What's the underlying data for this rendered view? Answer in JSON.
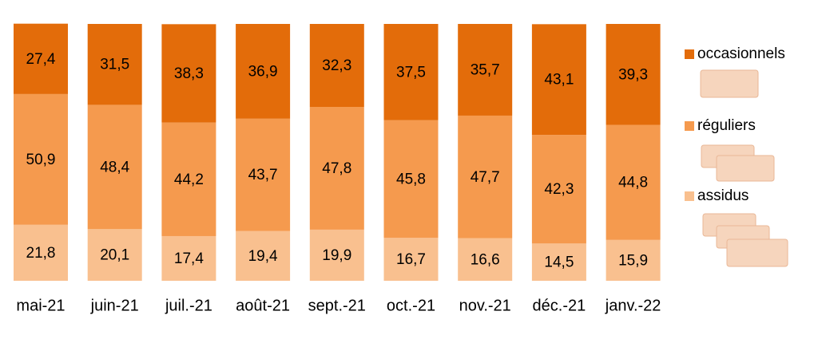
{
  "chart_data": {
    "type": "stacked_bar",
    "categories": [
      "mai-21",
      "juin-21",
      "juil.-21",
      "août-21",
      "sept.-21",
      "oct.-21",
      "nov.-21",
      "déc.-21",
      "janv.-22"
    ],
    "series": [
      {
        "name": "assidus",
        "color": "#f9c08f",
        "values": [
          21.8,
          20.1,
          17.4,
          19.4,
          19.9,
          16.7,
          16.6,
          14.5,
          15.9
        ],
        "value_labels": [
          "21,8",
          "20,1",
          "17,4",
          "19,4",
          "19,9",
          "16,7",
          "16,6",
          "14,5",
          "15,9"
        ]
      },
      {
        "name": "réguliers",
        "color": "#f59a4e",
        "values": [
          50.9,
          48.4,
          44.2,
          43.7,
          47.8,
          45.8,
          47.7,
          42.3,
          44.8
        ],
        "value_labels": [
          "50,9",
          "48,4",
          "44,2",
          "43,7",
          "47,8",
          "45,8",
          "47,7",
          "42,3",
          "44,8"
        ]
      },
      {
        "name": "occasionnels",
        "color": "#e36c0a",
        "values": [
          27.4,
          31.5,
          38.3,
          36.9,
          32.3,
          37.5,
          35.7,
          43.1,
          39.3
        ],
        "value_labels": [
          "27,4",
          "31,5",
          "38,3",
          "36,9",
          "32,3",
          "37,5",
          "35,7",
          "43,1",
          "39,3"
        ]
      }
    ],
    "ylim": [
      0,
      100
    ]
  }
}
